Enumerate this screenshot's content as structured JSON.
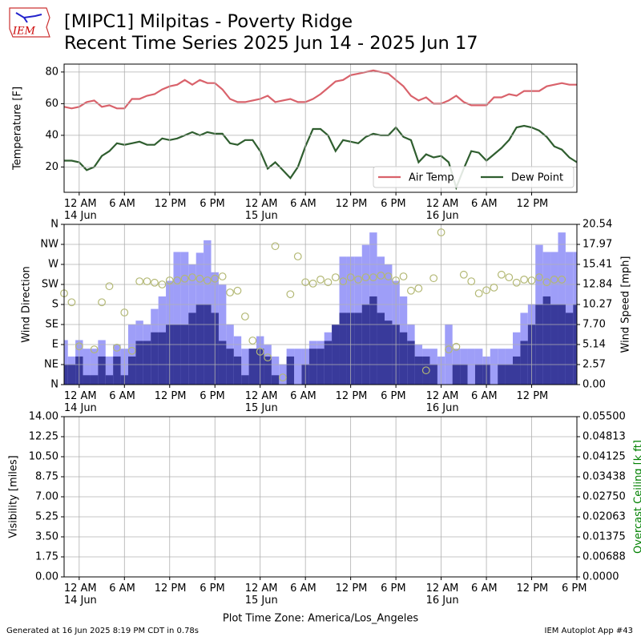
{
  "title": "[MIPC1] Milpitas - Poverty Ridge\nRecent Time Series 2025 Jun 14 - 2025 Jun 17",
  "logo": "IEM",
  "footer_left": "Generated at 16 Jun 2025 8:19 PM CDT in 0.78s",
  "footer_right": "IEM Autoplot App #43",
  "chart_data": [
    {
      "type": "line",
      "ylabel": "Temperature [F]",
      "grid": true,
      "legend": "lower right",
      "xlim": [
        "2025-06-13 22:00",
        "2025-06-16 18:00"
      ],
      "xticks": [
        {
          "value": "2025-06-14 00:00",
          "label": "12 AM\n14 Jun"
        },
        {
          "value": "2025-06-14 06:00",
          "label": "6 AM"
        },
        {
          "value": "2025-06-14 12:00",
          "label": "12 PM"
        },
        {
          "value": "2025-06-14 18:00",
          "label": "6 PM"
        },
        {
          "value": "2025-06-15 00:00",
          "label": "12 AM\n15 Jun"
        },
        {
          "value": "2025-06-15 06:00",
          "label": "6 AM"
        },
        {
          "value": "2025-06-15 12:00",
          "label": "12 PM"
        },
        {
          "value": "2025-06-15 18:00",
          "label": "6 PM"
        },
        {
          "value": "2025-06-16 00:00",
          "label": "12 AM\n16 Jun"
        },
        {
          "value": "2025-06-16 06:00",
          "label": "6 AM"
        },
        {
          "value": "2025-06-16 12:00",
          "label": "12 PM"
        }
      ],
      "ylim": [
        4,
        85
      ],
      "yticks": [
        20,
        40,
        60,
        80
      ],
      "x": [
        "2025-06-13 22:00",
        "2025-06-13 23:00",
        "2025-06-14 00:00",
        "2025-06-14 01:00",
        "2025-06-14 02:00",
        "2025-06-14 03:00",
        "2025-06-14 04:00",
        "2025-06-14 05:00",
        "2025-06-14 06:00",
        "2025-06-14 07:00",
        "2025-06-14 08:00",
        "2025-06-14 09:00",
        "2025-06-14 10:00",
        "2025-06-14 11:00",
        "2025-06-14 12:00",
        "2025-06-14 13:00",
        "2025-06-14 14:00",
        "2025-06-14 15:00",
        "2025-06-14 16:00",
        "2025-06-14 17:00",
        "2025-06-14 18:00",
        "2025-06-14 19:00",
        "2025-06-14 20:00",
        "2025-06-14 21:00",
        "2025-06-14 22:00",
        "2025-06-14 23:00",
        "2025-06-15 00:00",
        "2025-06-15 01:00",
        "2025-06-15 02:00",
        "2025-06-15 03:00",
        "2025-06-15 04:00",
        "2025-06-15 05:00",
        "2025-06-15 06:00",
        "2025-06-15 07:00",
        "2025-06-15 08:00",
        "2025-06-15 09:00",
        "2025-06-15 10:00",
        "2025-06-15 11:00",
        "2025-06-15 12:00",
        "2025-06-15 13:00",
        "2025-06-15 14:00",
        "2025-06-15 15:00",
        "2025-06-15 16:00",
        "2025-06-15 17:00",
        "2025-06-15 18:00",
        "2025-06-15 19:00",
        "2025-06-15 20:00",
        "2025-06-15 21:00",
        "2025-06-15 22:00",
        "2025-06-15 23:00",
        "2025-06-16 00:00",
        "2025-06-16 01:00",
        "2025-06-16 02:00",
        "2025-06-16 03:00",
        "2025-06-16 04:00",
        "2025-06-16 05:00",
        "2025-06-16 06:00",
        "2025-06-16 07:00",
        "2025-06-16 08:00",
        "2025-06-16 09:00",
        "2025-06-16 10:00",
        "2025-06-16 11:00",
        "2025-06-16 12:00",
        "2025-06-16 13:00",
        "2025-06-16 14:00",
        "2025-06-16 15:00",
        "2025-06-16 16:00",
        "2025-06-16 17:00",
        "2025-06-16 18:00"
      ],
      "series": [
        {
          "name": "Air Temp",
          "color": "#d9626b",
          "values": [
            58,
            57,
            58,
            61,
            62,
            58,
            59,
            57,
            57,
            63,
            63,
            65,
            66,
            69,
            71,
            72,
            75,
            72,
            75,
            73,
            73,
            69,
            63,
            61,
            61,
            62,
            63,
            65,
            61,
            62,
            63,
            61,
            61,
            63,
            66,
            70,
            74,
            75,
            78,
            79,
            80,
            81,
            80,
            79,
            75,
            71,
            65,
            62,
            64,
            60,
            60,
            62,
            65,
            61,
            59,
            59,
            59,
            64,
            64,
            66,
            65,
            68,
            68,
            68,
            71,
            72,
            73,
            72,
            72
          ]
        },
        {
          "name": "Dew Point",
          "color": "#2f5e2f",
          "values": [
            24,
            24,
            23,
            18,
            20,
            27,
            30,
            35,
            34,
            35,
            36,
            34,
            34,
            38,
            37,
            38,
            40,
            42,
            40,
            42,
            41,
            41,
            35,
            34,
            37,
            37,
            30,
            19,
            23,
            18,
            13,
            20,
            33,
            44,
            44,
            40,
            30,
            37,
            36,
            35,
            39,
            41,
            40,
            40,
            45,
            39,
            37,
            23,
            28,
            26,
            27,
            23,
            7,
            19,
            30,
            29,
            24,
            28,
            32,
            37,
            45,
            46,
            45,
            43,
            39,
            33,
            31,
            26,
            23
          ]
        }
      ]
    },
    {
      "type": "bar",
      "ylabel": "Wind Direction",
      "y2label": "Wind Speed [mph]",
      "grid": true,
      "xlim": [
        "2025-06-13 22:00",
        "2025-06-16 18:00"
      ],
      "xticks": [
        {
          "value": "2025-06-14 00:00",
          "label": "12 AM\n14 Jun"
        },
        {
          "value": "2025-06-14 06:00",
          "label": "6 AM"
        },
        {
          "value": "2025-06-14 12:00",
          "label": "12 PM"
        },
        {
          "value": "2025-06-14 18:00",
          "label": "6 PM"
        },
        {
          "value": "2025-06-15 00:00",
          "label": "12 AM\n15 Jun"
        },
        {
          "value": "2025-06-15 06:00",
          "label": "6 AM"
        },
        {
          "value": "2025-06-15 12:00",
          "label": "12 PM"
        },
        {
          "value": "2025-06-15 18:00",
          "label": "6 PM"
        },
        {
          "value": "2025-06-16 00:00",
          "label": "12 AM\n16 Jun"
        },
        {
          "value": "2025-06-16 06:00",
          "label": "6 AM"
        },
        {
          "value": "2025-06-16 12:00",
          "label": "12 PM"
        }
      ],
      "ylim": [
        0,
        360
      ],
      "yticks": [
        {
          "value": 0,
          "label": "N"
        },
        {
          "value": 45,
          "label": "NE"
        },
        {
          "value": 90,
          "label": "E"
        },
        {
          "value": 135,
          "label": "SE"
        },
        {
          "value": 180,
          "label": "S"
        },
        {
          "value": 225,
          "label": "SW"
        },
        {
          "value": 270,
          "label": "W"
        },
        {
          "value": 315,
          "label": "NW"
        },
        {
          "value": 360,
          "label": "N"
        }
      ],
      "y2lim": [
        0,
        20.54
      ],
      "y2ticks": [
        {
          "value": 0,
          "label": "0.00"
        },
        {
          "value": 2.57,
          "label": "2.57"
        },
        {
          "value": 5.14,
          "label": "5.14"
        },
        {
          "value": 7.7,
          "label": "7.70"
        },
        {
          "value": 10.27,
          "label": "10.27"
        },
        {
          "value": 12.84,
          "label": "12.84"
        },
        {
          "value": 15.41,
          "label": "15.41"
        },
        {
          "value": 17.97,
          "label": "17.97"
        },
        {
          "value": 20.54,
          "label": "20.54"
        }
      ],
      "x": [
        "2025-06-13 22:00",
        "2025-06-13 23:00",
        "2025-06-14 00:00",
        "2025-06-14 01:00",
        "2025-06-14 02:00",
        "2025-06-14 03:00",
        "2025-06-14 04:00",
        "2025-06-14 05:00",
        "2025-06-14 06:00",
        "2025-06-14 07:00",
        "2025-06-14 08:00",
        "2025-06-14 09:00",
        "2025-06-14 10:00",
        "2025-06-14 11:00",
        "2025-06-14 12:00",
        "2025-06-14 13:00",
        "2025-06-14 14:00",
        "2025-06-14 15:00",
        "2025-06-14 16:00",
        "2025-06-14 17:00",
        "2025-06-14 18:00",
        "2025-06-14 19:00",
        "2025-06-14 20:00",
        "2025-06-14 21:00",
        "2025-06-14 22:00",
        "2025-06-14 23:00",
        "2025-06-15 00:00",
        "2025-06-15 01:00",
        "2025-06-15 02:00",
        "2025-06-15 03:00",
        "2025-06-15 04:00",
        "2025-06-15 05:00",
        "2025-06-15 06:00",
        "2025-06-15 07:00",
        "2025-06-15 08:00",
        "2025-06-15 09:00",
        "2025-06-15 10:00",
        "2025-06-15 11:00",
        "2025-06-15 12:00",
        "2025-06-15 13:00",
        "2025-06-15 14:00",
        "2025-06-15 15:00",
        "2025-06-15 16:00",
        "2025-06-15 17:00",
        "2025-06-15 18:00",
        "2025-06-15 19:00",
        "2025-06-15 20:00",
        "2025-06-15 21:00",
        "2025-06-15 22:00",
        "2025-06-15 23:00",
        "2025-06-16 00:00",
        "2025-06-16 01:00",
        "2025-06-16 02:00",
        "2025-06-16 03:00",
        "2025-06-16 04:00",
        "2025-06-16 05:00",
        "2025-06-16 06:00",
        "2025-06-16 07:00",
        "2025-06-16 08:00",
        "2025-06-16 09:00",
        "2025-06-16 10:00",
        "2025-06-16 11:00",
        "2025-06-16 12:00",
        "2025-06-16 13:00",
        "2025-06-16 14:00",
        "2025-06-16 15:00",
        "2025-06-16 16:00",
        "2025-06-16 17:00",
        "2025-06-16 18:00"
      ],
      "series": [
        {
          "axis": "y2",
          "color": "#9e9ef8",
          "values": [
            5.7,
            3.6,
            5.7,
            4.6,
            4.6,
            5.7,
            3.6,
            5.1,
            4.6,
            7.7,
            8.2,
            7.7,
            9.7,
            11.3,
            13.3,
            17.0,
            17.0,
            15.4,
            16.9,
            18.5,
            14.4,
            12.8,
            7.7,
            6.2,
            4.6,
            4.6,
            6.2,
            5.1,
            3.6,
            2.6,
            4.6,
            4.6,
            4.6,
            5.6,
            5.6,
            6.7,
            7.7,
            16.4,
            16.4,
            16.4,
            17.9,
            19.5,
            16.4,
            15.4,
            13.3,
            11.3,
            7.7,
            5.1,
            4.6,
            4.6,
            3.6,
            7.7,
            4.6,
            4.6,
            4.6,
            4.6,
            3.6,
            4.6,
            4.6,
            4.6,
            6.7,
            9.2,
            10.3,
            17.9,
            17.0,
            17.0,
            19.5,
            17.0,
            17.0
          ]
        },
        {
          "axis": "y2",
          "color": "#393a9b",
          "values": [
            2.6,
            2.6,
            3.6,
            1.2,
            1.2,
            3.6,
            1.2,
            3.6,
            1.2,
            3.6,
            5.6,
            5.6,
            6.7,
            6.7,
            7.7,
            7.7,
            7.7,
            9.2,
            10.3,
            10.3,
            9.2,
            5.6,
            4.6,
            3.6,
            1.2,
            4.6,
            4.6,
            3.6,
            1.2,
            0,
            3.6,
            0,
            2.6,
            4.6,
            4.6,
            5.6,
            7.7,
            9.2,
            9.2,
            9.2,
            10.3,
            11.3,
            9.2,
            8.2,
            7.7,
            6.7,
            5.6,
            3.6,
            3.6,
            2.6,
            0,
            0,
            2.6,
            2.6,
            0,
            2.6,
            2.6,
            0,
            2.6,
            2.6,
            3.6,
            5.6,
            7.7,
            10.3,
            11.3,
            10.3,
            10.3,
            9.2,
            10.3
          ]
        },
        {
          "type": "scatter",
          "color": "#b3b874",
          "values": [
            205,
            185,
            86,
            null,
            79,
            185,
            221,
            83,
            162,
            76,
            232,
            232,
            229,
            225,
            234,
            234,
            238,
            241,
            238,
            234,
            238,
            243,
            207,
            211,
            153,
            99,
            74,
            61,
            311,
            16,
            203,
            288,
            230,
            227,
            236,
            230,
            241,
            232,
            241,
            236,
            241,
            241,
            245,
            243,
            234,
            243,
            211,
            216,
            32,
            239,
            342,
            79,
            85,
            247,
            232,
            205,
            212,
            218,
            247,
            241,
            229,
            236,
            234,
            241,
            230,
            236,
            236,
            null,
            null
          ]
        }
      ]
    },
    {
      "type": "line",
      "ylabel": "Visibility [miles]",
      "y2label": "Overcast Ceiling [k ft]",
      "y2label_color": "green",
      "xlabel": "Plot Time Zone: America/Los_Angeles",
      "grid": true,
      "xlim": [
        "2025-06-13 22:00",
        "2025-06-16 18:00"
      ],
      "xticks": [
        {
          "value": "2025-06-14 00:00",
          "label": "12 AM\n14 Jun"
        },
        {
          "value": "2025-06-14 06:00",
          "label": "6 AM"
        },
        {
          "value": "2025-06-14 12:00",
          "label": "12 PM"
        },
        {
          "value": "2025-06-14 18:00",
          "label": "6 PM"
        },
        {
          "value": "2025-06-15 00:00",
          "label": "12 AM\n15 Jun"
        },
        {
          "value": "2025-06-15 06:00",
          "label": "6 AM"
        },
        {
          "value": "2025-06-15 12:00",
          "label": "12 PM"
        },
        {
          "value": "2025-06-15 18:00",
          "label": "6 PM"
        },
        {
          "value": "2025-06-16 00:00",
          "label": "12 AM\n16 Jun"
        },
        {
          "value": "2025-06-16 06:00",
          "label": "6 AM"
        },
        {
          "value": "2025-06-16 12:00",
          "label": "12 PM"
        },
        {
          "value": "2025-06-16 18:00",
          "label": "6 PM"
        }
      ],
      "ylim": [
        0,
        14
      ],
      "yticks": [
        {
          "value": 0,
          "label": "0.00"
        },
        {
          "value": 1.75,
          "label": "1.75"
        },
        {
          "value": 3.5,
          "label": "3.50"
        },
        {
          "value": 5.25,
          "label": "5.25"
        },
        {
          "value": 7,
          "label": "7.00"
        },
        {
          "value": 8.75,
          "label": "8.75"
        },
        {
          "value": 10.5,
          "label": "10.50"
        },
        {
          "value": 12.25,
          "label": "12.25"
        },
        {
          "value": 14,
          "label": "14.00"
        }
      ],
      "y2lim": [
        0,
        0.055
      ],
      "y2ticks": [
        {
          "value": 0,
          "label": "0.0000"
        },
        {
          "value": 0.006875,
          "label": "0.00688"
        },
        {
          "value": 0.01375,
          "label": "0.01375"
        },
        {
          "value": 0.020625,
          "label": "0.02063"
        },
        {
          "value": 0.0275,
          "label": "0.02750"
        },
        {
          "value": 0.034375,
          "label": "0.03438"
        },
        {
          "value": 0.04125,
          "label": "0.04125"
        },
        {
          "value": 0.048125,
          "label": "0.04813"
        },
        {
          "value": 0.055,
          "label": "0.05500"
        }
      ],
      "x": [],
      "series": []
    }
  ]
}
